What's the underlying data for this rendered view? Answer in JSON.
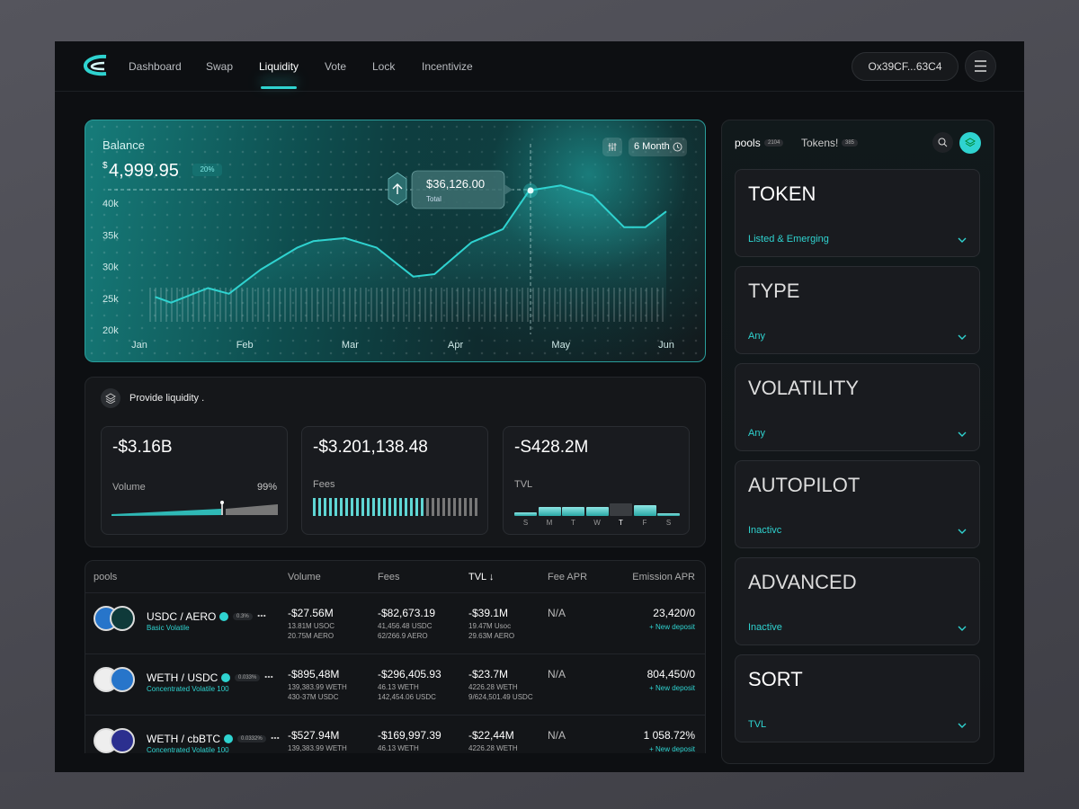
{
  "nav": {
    "items": [
      "Dashboard",
      "Swap",
      "Liquidity",
      "Vote",
      "Lock",
      "Incentivize"
    ],
    "wallet": "Ox39CF...63C4"
  },
  "balance": {
    "title": "Balance",
    "currency": "$",
    "amount": "4,999.95",
    "change": "20%",
    "period": "6 Month",
    "tooltip": {
      "value": "$36,126.00",
      "label": "Total"
    }
  },
  "chart_data": {
    "type": "line",
    "x": [
      0.15,
      0.3,
      0.65,
      0.85,
      1.15,
      1.5,
      1.65,
      1.95,
      2.25,
      2.6,
      2.8,
      3.15,
      3.45,
      3.7,
      4,
      4.3,
      4.6,
      4.8,
      5
    ],
    "values": [
      25200,
      24300,
      26600,
      25700,
      29500,
      33000,
      34000,
      34500,
      33000,
      28400,
      28800,
      33800,
      35900,
      42000,
      42800,
      41200,
      36200,
      36200,
      38700
    ],
    "color": "#2fd3d0",
    "xlim": [
      0,
      5
    ],
    "xticks": [
      {
        "value": 0,
        "label": "Jan"
      },
      {
        "value": 1,
        "label": "Feb"
      },
      {
        "value": 2,
        "label": "Mar"
      },
      {
        "value": 3,
        "label": "Apr"
      },
      {
        "value": 4,
        "label": "May"
      },
      {
        "value": 5,
        "label": "Jun"
      }
    ],
    "ylim": [
      18000,
      44000
    ],
    "yticks": [
      {
        "value": 20000,
        "label": "20k"
      },
      {
        "value": 25000,
        "label": "25k"
      },
      {
        "value": 30000,
        "label": "30k"
      },
      {
        "value": 35000,
        "label": "35k"
      },
      {
        "value": 40000,
        "label": "40k"
      }
    ]
  },
  "liquidity": {
    "title": "Provide liquidity .",
    "stats": [
      {
        "value": "-$3.16B",
        "label": "Volume",
        "pct": "99%"
      },
      {
        "value": "-$3.201,138.48",
        "label": "Fees"
      },
      {
        "value": "-S428.2M",
        "label": "TVL",
        "days": [
          "S",
          "M",
          "T",
          "W",
          "T",
          "F",
          "S"
        ]
      }
    ]
  },
  "table": {
    "columns": [
      "pools",
      "Volume",
      "Fees",
      "TVL ↓",
      "Fee APR",
      "Emission APR"
    ],
    "rows": [
      {
        "pair": "USDC / AERO",
        "fee": "0.3%",
        "kind": "Basic Volatile",
        "volume": "-$27.56M",
        "volume_sub": [
          "13.81M USOC",
          "20.75M AERO"
        ],
        "fees": "-$82,673.19",
        "fees_sub": [
          "41,456.48 USDC",
          "62/266.9 AERO"
        ],
        "tvl": "-$39.1M",
        "tvl_sub": [
          "19.47M Usoc",
          "29.63M AERO"
        ],
        "fee_apr": "N/A",
        "emission_apr": "23,420/0",
        "action": "+ New deposit"
      },
      {
        "pair": "WETH / USDC",
        "fee": "0.033%",
        "kind": "Concentrated Volatile 100",
        "volume": "-$895,48M",
        "volume_sub": [
          "139,383.99 WETH",
          "430-37M USDC"
        ],
        "fees": "-$296,405.93",
        "fees_sub": [
          "46.13 WETH",
          "142,454.06 USDC"
        ],
        "tvl": "-$23.7M",
        "tvl_sub": [
          "4226.28 WETH",
          "9/624,501.49 USDC"
        ],
        "fee_apr": "N/A",
        "emission_apr": "804,450/0",
        "action": "+ New deposit"
      },
      {
        "pair": "WETH / cbBTC",
        "fee": "0.0332%",
        "kind": "Concentrated Volatile 100",
        "volume": "-$527.94M",
        "volume_sub": [
          "139,383.99 WETH"
        ],
        "fees": "-$169,997.39",
        "fees_sub": [
          "46.13 WETH"
        ],
        "tvl": "-$22,44M",
        "tvl_sub": [
          "4226.28 WETH"
        ],
        "fee_apr": "N/A",
        "emission_apr": "1 058.72%",
        "action": "+ New deposit"
      }
    ]
  },
  "filters": {
    "tabs": [
      {
        "label": "pools",
        "count": "2104"
      },
      {
        "label": "Tokens!",
        "count": "385"
      }
    ],
    "items": [
      {
        "title": "TOKEN",
        "value": "Listed & Emerging"
      },
      {
        "title": "TYPE",
        "value": "Any"
      },
      {
        "title": "VOLATILITY",
        "value": "Any"
      },
      {
        "title": "AUTOPILOT",
        "value": "Inactivc"
      },
      {
        "title": "ADVANCED",
        "value": "Inactive"
      },
      {
        "title": "SORT",
        "value": "TVL"
      }
    ]
  }
}
